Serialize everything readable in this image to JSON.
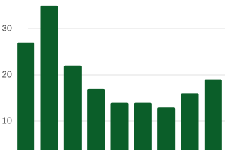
{
  "chart_data": {
    "type": "bar",
    "categories": [
      null,
      null,
      null,
      null,
      null,
      null,
      null,
      null,
      null
    ],
    "values": [
      27,
      35,
      22,
      17,
      14,
      14,
      13,
      16,
      19
    ],
    "color": "#0b5e29",
    "ylim": [
      3.8,
      36.2
    ],
    "yticks": [
      10,
      20,
      30
    ],
    "grid": true
  }
}
